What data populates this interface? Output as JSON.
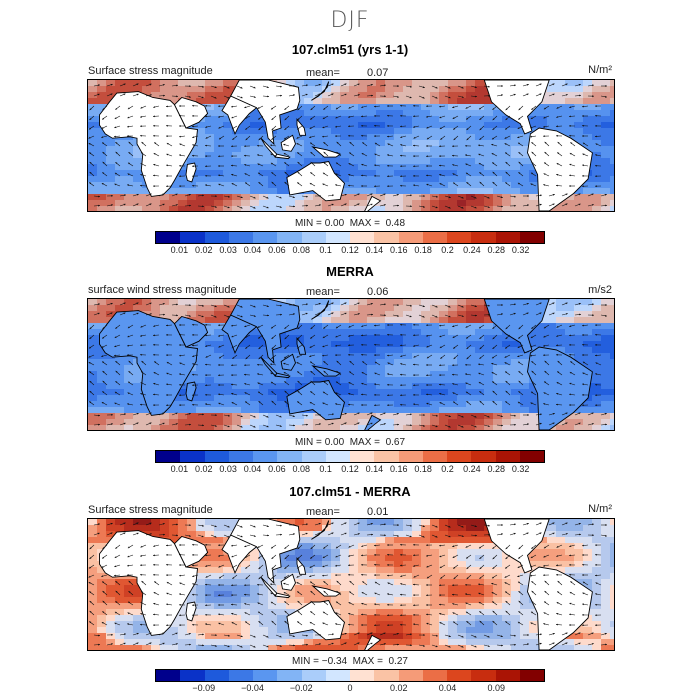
{
  "season": "DJF",
  "colors": [
    "#00008c",
    "#0a32c8",
    "#1e5adc",
    "#3c78e6",
    "#5a96f0",
    "#82b4f5",
    "#aacdfa",
    "#d2e6ff",
    "#ffe1d2",
    "#fac3a5",
    "#f59b78",
    "#eb6e46",
    "#dc461e",
    "#c82d0f",
    "#aa1405",
    "#820000"
  ],
  "panels": [
    {
      "title": "107.clm51 (yrs 1-1)",
      "label": "Surface stress magnitude",
      "mean_label": "mean=",
      "mean_value": "0.07",
      "unit": "N/m²",
      "min_label": "MIN =",
      "min_value": "0.00",
      "max_label": "MAX =",
      "max_value": "0.48",
      "ticks": [
        "0.01",
        "0.02",
        "0.03",
        "0.04",
        "0.06",
        "0.08",
        "0.1",
        "0.12",
        "0.14",
        "0.16",
        "0.18",
        "0.2",
        "0.24",
        "0.28",
        "0.32"
      ],
      "field": "absolute"
    },
    {
      "title": "MERRA",
      "label": "surface wind stress magnitude",
      "mean_label": "mean=",
      "mean_value": "0.06",
      "unit": "m/s2",
      "min_label": "MIN =",
      "min_value": "0.00",
      "max_label": "MAX =",
      "max_value": "0.67",
      "ticks": [
        "0.01",
        "0.02",
        "0.03",
        "0.04",
        "0.06",
        "0.08",
        "0.1",
        "0.12",
        "0.14",
        "0.16",
        "0.18",
        "0.2",
        "0.24",
        "0.28",
        "0.32"
      ],
      "field": "absolute-land"
    },
    {
      "title": "107.clm51 - MERRA",
      "label": "Surface stress magnitude",
      "mean_label": "mean=",
      "mean_value": "0.01",
      "unit": "N/m²",
      "min_label": "MIN =",
      "min_value": "−0.34",
      "max_label": "MAX =",
      "max_value": "0.27",
      "ticks": [
        "−0.09",
        "−0.04",
        "−0.02",
        "0",
        "0.02",
        "0.04",
        "0.09"
      ],
      "field": "difference"
    }
  ]
}
